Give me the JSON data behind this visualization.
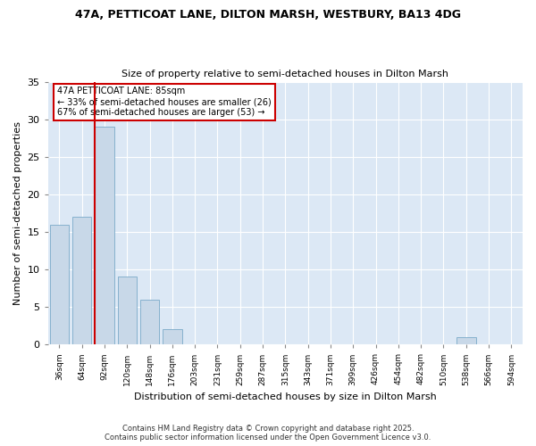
{
  "title_line1": "47A, PETTICOAT LANE, DILTON MARSH, WESTBURY, BA13 4DG",
  "title_line2": "Size of property relative to semi-detached houses in Dilton Marsh",
  "xlabel": "Distribution of semi-detached houses by size in Dilton Marsh",
  "ylabel": "Number of semi-detached properties",
  "bin_labels": [
    "36sqm",
    "64sqm",
    "92sqm",
    "120sqm",
    "148sqm",
    "176sqm",
    "203sqm",
    "231sqm",
    "259sqm",
    "287sqm",
    "315sqm",
    "343sqm",
    "371sqm",
    "399sqm",
    "426sqm",
    "454sqm",
    "482sqm",
    "510sqm",
    "538sqm",
    "566sqm",
    "594sqm"
  ],
  "bar_values": [
    16,
    17,
    29,
    9,
    6,
    2,
    0,
    0,
    0,
    0,
    0,
    0,
    0,
    0,
    0,
    0,
    0,
    0,
    1,
    0,
    0
  ],
  "bar_color": "#c8d8e8",
  "bar_edge_color": "#7aaac8",
  "ylim": [
    0,
    35
  ],
  "yticks": [
    0,
    5,
    10,
    15,
    20,
    25,
    30,
    35
  ],
  "redline_bin_index": 2,
  "annotation_title": "47A PETTICOAT LANE: 85sqm",
  "annotation_line2": "← 33% of semi-detached houses are smaller (26)",
  "annotation_line3": "67% of semi-detached houses are larger (53) →",
  "footer_line1": "Contains HM Land Registry data © Crown copyright and database right 2025.",
  "footer_line2": "Contains public sector information licensed under the Open Government Licence v3.0.",
  "fig_bg_color": "#ffffff",
  "plot_bg_color": "#dce8f5",
  "grid_color": "#ffffff",
  "annotation_box_edge": "#cc0000",
  "annotation_box_face": "#ffffff"
}
